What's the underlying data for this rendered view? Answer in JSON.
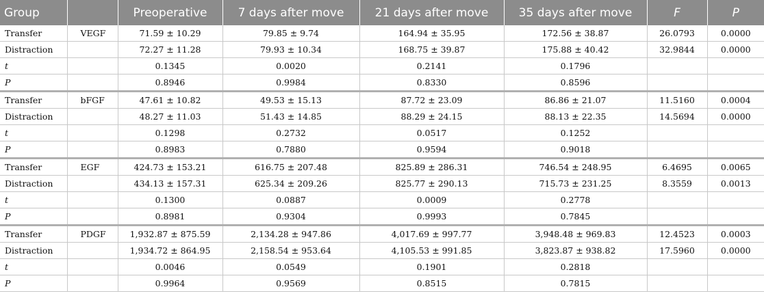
{
  "headers": {
    "group": "Group",
    "factor": "",
    "preoperative": "Preoperative",
    "day7": "7 days after move",
    "day21": "21 days after move",
    "day35": "35 days after move",
    "f": "F",
    "p": "P"
  },
  "rows": [
    {
      "group": "Transfer",
      "factor": "VEGF",
      "pre": "71.59 ± 10.29",
      "d7": "79.85 ± 9.74",
      "d21": "164.94 ± 35.95",
      "d35": "172.56 ± 38.87",
      "f": "26.0793",
      "p": "0.0000"
    },
    {
      "group": "Distraction",
      "factor": "",
      "pre": "72.27 ± 11.28",
      "d7": "79.93 ± 10.34",
      "d21": "168.75 ± 39.87",
      "d35": "175.88 ± 40.42",
      "f": "32.9844",
      "p": "0.0000"
    },
    {
      "group": "t",
      "factor": "",
      "pre": "0.1345",
      "d7": "0.0020",
      "d21": "0.2141",
      "d35": "0.1796",
      "f": "",
      "p": ""
    },
    {
      "group": "P",
      "factor": "",
      "pre": "0.8946",
      "d7": "0.9984",
      "d21": "0.8330",
      "d35": "0.8596",
      "f": "",
      "p": ""
    },
    {
      "group": "Transfer",
      "factor": "bFGF",
      "pre": "47.61 ± 10.82",
      "d7": "49.53 ± 15.13",
      "d21": "87.72 ± 23.09",
      "d35": "86.86 ± 21.07",
      "f": "11.5160",
      "p": "0.0004"
    },
    {
      "group": "Distraction",
      "factor": "",
      "pre": "48.27 ± 11.03",
      "d7": "51.43 ± 14.85",
      "d21": "88.29 ± 24.15",
      "d35": "88.13 ± 22.35",
      "f": "14.5694",
      "p": "0.0000"
    },
    {
      "group": "t",
      "factor": "",
      "pre": "0.1298",
      "d7": "0.2732",
      "d21": "0.0517",
      "d35": "0.1252",
      "f": "",
      "p": ""
    },
    {
      "group": "P",
      "factor": "",
      "pre": "0.8983",
      "d7": "0.7880",
      "d21": "0.9594",
      "d35": "0.9018",
      "f": "",
      "p": ""
    },
    {
      "group": "Transfer",
      "factor": "EGF",
      "pre": "424.73 ± 153.21",
      "d7": "616.75 ± 207.48",
      "d21": "825.89 ± 286.31",
      "d35": "746.54 ± 248.95",
      "f": "6.4695",
      "p": "0.0065"
    },
    {
      "group": "Distraction",
      "factor": "",
      "pre": "434.13 ± 157.31",
      "d7": "625.34 ± 209.26",
      "d21": "825.77 ± 290.13",
      "d35": "715.73 ± 231.25",
      "f": "8.3559",
      "p": "0.0013"
    },
    {
      "group": "t",
      "factor": "",
      "pre": "0.1300",
      "d7": "0.0887",
      "d21": "0.0009",
      "d35": "0.2778",
      "f": "",
      "p": ""
    },
    {
      "group": "P",
      "factor": "",
      "pre": "0.8981",
      "d7": "0.9304",
      "d21": "0.9993",
      "d35": "0.7845",
      "f": "",
      "p": ""
    },
    {
      "group": "Transfer",
      "factor": "PDGF",
      "pre": "1,932.87 ± 875.59",
      "d7": "2,134.28 ± 947.86",
      "d21": "4,017.69 ± 997.77",
      "d35": "3,948.48 ± 969.83",
      "f": "12.4523",
      "p": "0.0003"
    },
    {
      "group": "Distraction",
      "factor": "",
      "pre": "1,934.72 ± 864.95",
      "d7": "2,158.54 ± 953.64",
      "d21": "4,105.53 ± 991.85",
      "d35": "3,823.87 ± 938.82",
      "f": "17.5960",
      "p": "0.0000"
    },
    {
      "group": "t",
      "factor": "",
      "pre": "0.0046",
      "d7": "0.0549",
      "d21": "0.1901",
      "d35": "0.2818",
      "f": "",
      "p": ""
    },
    {
      "group": "P",
      "factor": "",
      "pre": "0.9964",
      "d7": "0.9569",
      "d21": "0.8515",
      "d35": "0.7815",
      "f": "",
      "p": ""
    }
  ]
}
